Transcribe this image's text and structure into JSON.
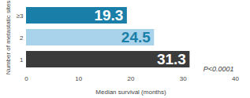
{
  "chart_data": {
    "type": "bar",
    "orientation": "horizontal",
    "categories": [
      "≥3",
      "2",
      "1"
    ],
    "values": [
      19.3,
      24.5,
      31.3
    ],
    "colors": [
      "#1a7fa8",
      "#a8d3ea",
      "#3b3b3b"
    ],
    "xlim": [
      0,
      40
    ],
    "xticks": [
      0,
      10,
      20,
      30,
      40
    ],
    "x_label": "Median survival (months)",
    "y_label": "Number of metastatic sites",
    "data_labels": true,
    "annotation": "P<0.0001",
    "grid": false
  }
}
